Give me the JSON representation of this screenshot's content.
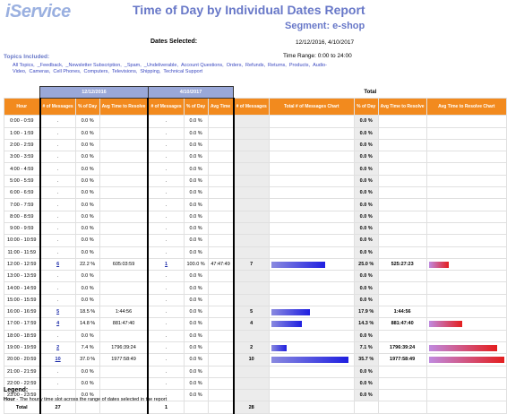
{
  "header": {
    "logo": "iService",
    "title": "Time of Day by Individual Dates Report",
    "segment": "Segment: e-shop",
    "dates_selected_label": "Dates Selected:",
    "dates_selected_value": "12/12/2016, 4/10/2017",
    "time_range": "Time Range: 0:00 to 24:00"
  },
  "topics": {
    "label": "Topics Included:",
    "items": [
      "All Topics,",
      "_Feedback,",
      "_Newsletter Subscription,",
      "_Spam,",
      "_Undeliverable,",
      "Account Questions,",
      "Orders,",
      "Refunds,",
      "Returns,",
      "Products,",
      "Audio-Video,",
      "Cameras,",
      "Cell Phones,",
      "Computers,",
      "Televisions,",
      "Shipping,",
      "Technical Support"
    ]
  },
  "table": {
    "date1": "12/12/2016",
    "date2": "4/10/2017",
    "total_label": "Total",
    "headers": {
      "hour": "Hour",
      "msgs": "# of Messages",
      "pct": "% of Day",
      "avg_resolve": "Avg Time to Resolve",
      "avg_time": "Avg Time",
      "msgs_chart": "Total # of Messages Chart",
      "avg_chart": "Avg Time to Resolve Chart"
    },
    "rows": [
      {
        "hour": "0:00 - 0:59",
        "d1m": ".",
        "d1p": "0.0 %",
        "d1a": "",
        "d2m": ".",
        "d2p": "0.0 %",
        "d2a": "",
        "tm": "",
        "tp": "0.0 %",
        "ta": "",
        "bm": 0,
        "ba": 0
      },
      {
        "hour": "1:00 - 1:59",
        "d1m": ".",
        "d1p": "0.0 %",
        "d1a": "",
        "d2m": ".",
        "d2p": "0.0 %",
        "d2a": "",
        "tm": "",
        "tp": "0.0 %",
        "ta": "",
        "bm": 0,
        "ba": 0
      },
      {
        "hour": "2:00 - 2:59",
        "d1m": ".",
        "d1p": "0.0 %",
        "d1a": "",
        "d2m": ".",
        "d2p": "0.0 %",
        "d2a": "",
        "tm": "",
        "tp": "0.0 %",
        "ta": "",
        "bm": 0,
        "ba": 0
      },
      {
        "hour": "3:00 - 3:59",
        "d1m": ".",
        "d1p": "0.0 %",
        "d1a": "",
        "d2m": ".",
        "d2p": "0.0 %",
        "d2a": "",
        "tm": "",
        "tp": "0.0 %",
        "ta": "",
        "bm": 0,
        "ba": 0
      },
      {
        "hour": "4:00 - 4:59",
        "d1m": ".",
        "d1p": "0.0 %",
        "d1a": "",
        "d2m": ".",
        "d2p": "0.0 %",
        "d2a": "",
        "tm": "",
        "tp": "0.0 %",
        "ta": "",
        "bm": 0,
        "ba": 0
      },
      {
        "hour": "5:00 - 5:59",
        "d1m": ".",
        "d1p": "0.0 %",
        "d1a": "",
        "d2m": ".",
        "d2p": "0.0 %",
        "d2a": "",
        "tm": "",
        "tp": "0.0 %",
        "ta": "",
        "bm": 0,
        "ba": 0
      },
      {
        "hour": "6:00 - 6:59",
        "d1m": ".",
        "d1p": "0.0 %",
        "d1a": "",
        "d2m": ".",
        "d2p": "0.0 %",
        "d2a": "",
        "tm": "",
        "tp": "0.0 %",
        "ta": "",
        "bm": 0,
        "ba": 0
      },
      {
        "hour": "7:00 - 7:59",
        "d1m": ".",
        "d1p": "0.0 %",
        "d1a": "",
        "d2m": ".",
        "d2p": "0.0 %",
        "d2a": "",
        "tm": "",
        "tp": "0.0 %",
        "ta": "",
        "bm": 0,
        "ba": 0
      },
      {
        "hour": "8:00 - 8:59",
        "d1m": ".",
        "d1p": "0.0 %",
        "d1a": "",
        "d2m": ".",
        "d2p": "0.0 %",
        "d2a": "",
        "tm": "",
        "tp": "0.0 %",
        "ta": "",
        "bm": 0,
        "ba": 0
      },
      {
        "hour": "9:00 - 9:59",
        "d1m": ".",
        "d1p": "0.0 %",
        "d1a": "",
        "d2m": ".",
        "d2p": "0.0 %",
        "d2a": "",
        "tm": "",
        "tp": "0.0 %",
        "ta": "",
        "bm": 0,
        "ba": 0
      },
      {
        "hour": "10:00 - 10:59",
        "d1m": ".",
        "d1p": "0.0 %",
        "d1a": "",
        "d2m": ".",
        "d2p": "0.0 %",
        "d2a": "",
        "tm": "",
        "tp": "0.0 %",
        "ta": "",
        "bm": 0,
        "ba": 0
      },
      {
        "hour": "11:00 - 11:59",
        "d1m": ".",
        "d1p": "0.0 %",
        "d1a": "",
        "d2m": ".",
        "d2p": "0.0 %",
        "d2a": "",
        "tm": "",
        "tp": "0.0 %",
        "ta": "",
        "bm": 0,
        "ba": 0
      },
      {
        "hour": "12:00 - 12:59",
        "d1m": "6",
        "d1p": "22.2 %",
        "d1a": "605:03:59",
        "d2m": "1",
        "d2p": "100.0 %",
        "d2a": "47:47:49",
        "tm": "7",
        "tp": "25.0 %",
        "ta": "525:27:23",
        "bm": 7,
        "ba": 525.46
      },
      {
        "hour": "13:00 - 13:59",
        "d1m": ".",
        "d1p": "0.0 %",
        "d1a": "",
        "d2m": ".",
        "d2p": "0.0 %",
        "d2a": "",
        "tm": "",
        "tp": "0.0 %",
        "ta": "",
        "bm": 0,
        "ba": 0
      },
      {
        "hour": "14:00 - 14:59",
        "d1m": ".",
        "d1p": "0.0 %",
        "d1a": "",
        "d2m": ".",
        "d2p": "0.0 %",
        "d2a": "",
        "tm": "",
        "tp": "0.0 %",
        "ta": "",
        "bm": 0,
        "ba": 0
      },
      {
        "hour": "15:00 - 15:59",
        "d1m": ".",
        "d1p": "0.0 %",
        "d1a": "",
        "d2m": ".",
        "d2p": "0.0 %",
        "d2a": "",
        "tm": "",
        "tp": "0.0 %",
        "ta": "",
        "bm": 0,
        "ba": 0
      },
      {
        "hour": "16:00 - 16:59",
        "d1m": "5",
        "d1p": "18.5 %",
        "d1a": "1:44:56",
        "d2m": ".",
        "d2p": "0.0 %",
        "d2a": "",
        "tm": "5",
        "tp": "17.9 %",
        "ta": "1:44:56",
        "bm": 5,
        "ba": 0
      },
      {
        "hour": "17:00 - 17:59",
        "d1m": "4",
        "d1p": "14.8 %",
        "d1a": "881:47:40",
        "d2m": ".",
        "d2p": "0.0 %",
        "d2a": "",
        "tm": "4",
        "tp": "14.3 %",
        "ta": "881:47:40",
        "bm": 4,
        "ba": 881.79
      },
      {
        "hour": "18:00 - 18:59",
        "d1m": ".",
        "d1p": "0.0 %",
        "d1a": "",
        "d2m": ".",
        "d2p": "0.0 %",
        "d2a": "",
        "tm": "",
        "tp": "0.0 %",
        "ta": "",
        "bm": 0,
        "ba": 0
      },
      {
        "hour": "19:00 - 19:59",
        "d1m": "2",
        "d1p": "7.4 %",
        "d1a": "1796:39:24",
        "d2m": ".",
        "d2p": "0.0 %",
        "d2a": "",
        "tm": "2",
        "tp": "7.1 %",
        "ta": "1796:39:24",
        "bm": 2,
        "ba": 1796.66
      },
      {
        "hour": "20:00 - 20:59",
        "d1m": "10",
        "d1p": "37.0 %",
        "d1a": "1977:58:49",
        "d2m": ".",
        "d2p": "0.0 %",
        "d2a": "",
        "tm": "10",
        "tp": "35.7 %",
        "ta": "1977:58:49",
        "bm": 10,
        "ba": 1977.98
      },
      {
        "hour": "21:00 - 21:59",
        "d1m": ".",
        "d1p": "0.0 %",
        "d1a": "",
        "d2m": ".",
        "d2p": "0.0 %",
        "d2a": "",
        "tm": "",
        "tp": "0.0 %",
        "ta": "",
        "bm": 0,
        "ba": 0
      },
      {
        "hour": "22:00 - 22:59",
        "d1m": ".",
        "d1p": "0.0 %",
        "d1a": "",
        "d2m": ".",
        "d2p": "0.0 %",
        "d2a": "",
        "tm": "",
        "tp": "0.0 %",
        "ta": "",
        "bm": 0,
        "ba": 0
      },
      {
        "hour": "23:00 - 23:59",
        "d1m": ".",
        "d1p": "0.0 %",
        "d1a": "",
        "d2m": ".",
        "d2p": "0.0 %",
        "d2a": "",
        "tm": "",
        "tp": "0.0 %",
        "ta": "",
        "bm": 0,
        "ba": 0
      }
    ],
    "total_row": {
      "hour": "Total",
      "d1m": "27",
      "d2m": "1",
      "tm": "28"
    }
  },
  "legend": {
    "title": "Legend:",
    "term": "Hour",
    "text": " - The hourly time slot across the range of dates selected in the report"
  },
  "colors": {
    "header_orange": "#f28a1e",
    "date_header": "#9aa8d8",
    "title": "#6878c8",
    "bar_blue": "#1f1fe0",
    "bar_red": "#e41e1e"
  }
}
